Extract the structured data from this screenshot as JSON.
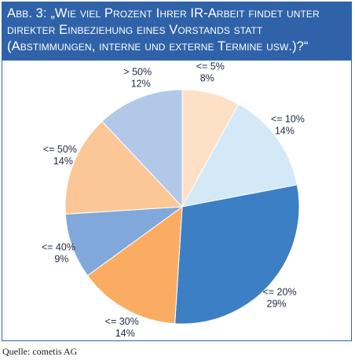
{
  "chart_data": {
    "type": "pie",
    "title_lines": [
      "Abb. 3: „Wie viel Prozent Ihrer IR-Arbeit findet unter",
      "direkter Einbeziehung eines Vorstands statt",
      "(Abstimmungen, interne und externe Termine usw.)?“"
    ],
    "slices": [
      {
        "label": "<= 5%",
        "value": 8,
        "pct_label": "8%",
        "color": "#fde0c6"
      },
      {
        "label": "<= 10%",
        "value": 14,
        "pct_label": "14%",
        "color": "#d3e9f8"
      },
      {
        "label": "<= 20%",
        "value": 29,
        "pct_label": "29%",
        "color": "#3d7fc4"
      },
      {
        "label": "<= 30%",
        "value": 14,
        "pct_label": "14%",
        "color": "#faad62"
      },
      {
        "label": "<= 40%",
        "value": 9,
        "pct_label": "9%",
        "color": "#81a8db"
      },
      {
        "label": "<= 50%",
        "value": 14,
        "pct_label": "14%",
        "color": "#fcc796"
      },
      {
        "label": "> 50%",
        "value": 12,
        "pct_label": "12%",
        "color": "#b2c8e9"
      }
    ]
  },
  "source": "Quelle: cometis AG"
}
